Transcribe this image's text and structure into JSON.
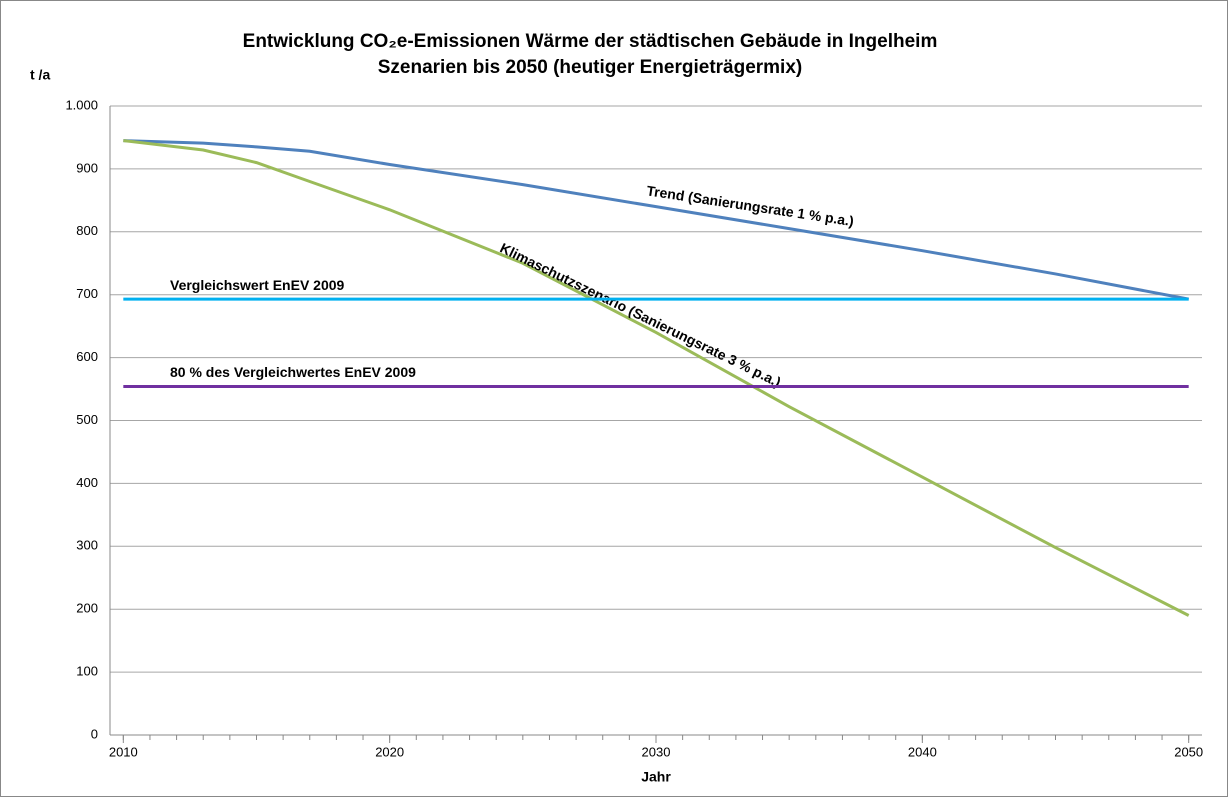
{
  "chart_data": {
    "type": "line",
    "title": "Entwicklung CO₂e-Emissionen Wärme der städtischen Gebäude in Ingelheim",
    "subtitle": "Szenarien bis 2050 (heutiger Energieträgermix)",
    "y_label": "t /a",
    "x_label": "Jahr",
    "x": [
      2010,
      2013,
      2015,
      2017,
      2020,
      2025,
      2030,
      2035,
      2040,
      2045,
      2050
    ],
    "series": [
      {
        "name": "Trend (Sanierungsrate  1 % p.a.)",
        "color": "#4f81bd",
        "values": [
          945,
          941,
          935,
          928,
          907,
          875,
          840,
          805,
          770,
          733,
          693
        ]
      },
      {
        "name": "Klimaschutzszenario  (Sanierungsrate  3 % p.a.)",
        "color": "#9bbb59",
        "values": [
          945,
          930,
          910,
          880,
          835,
          750,
          640,
          522,
          410,
          298,
          190
        ]
      }
    ],
    "reference_lines": [
      {
        "name": "Vergleichswert  EnEV 2009",
        "color": "#00b0f0",
        "value": 693
      },
      {
        "name": "80 % des Vergleichwertes EnEV 2009",
        "color": "#7030a0",
        "value": 554
      }
    ],
    "xlim": [
      2009.5,
      2050.5
    ],
    "xticks": [
      2010,
      2020,
      2030,
      2040,
      2050
    ],
    "ylim": [
      0,
      1000
    ],
    "yticks": [
      0,
      100,
      200,
      300,
      400,
      500,
      600,
      700,
      800,
      900,
      {
        "value": 1000,
        "label": "1.000"
      }
    ],
    "grid": true
  }
}
